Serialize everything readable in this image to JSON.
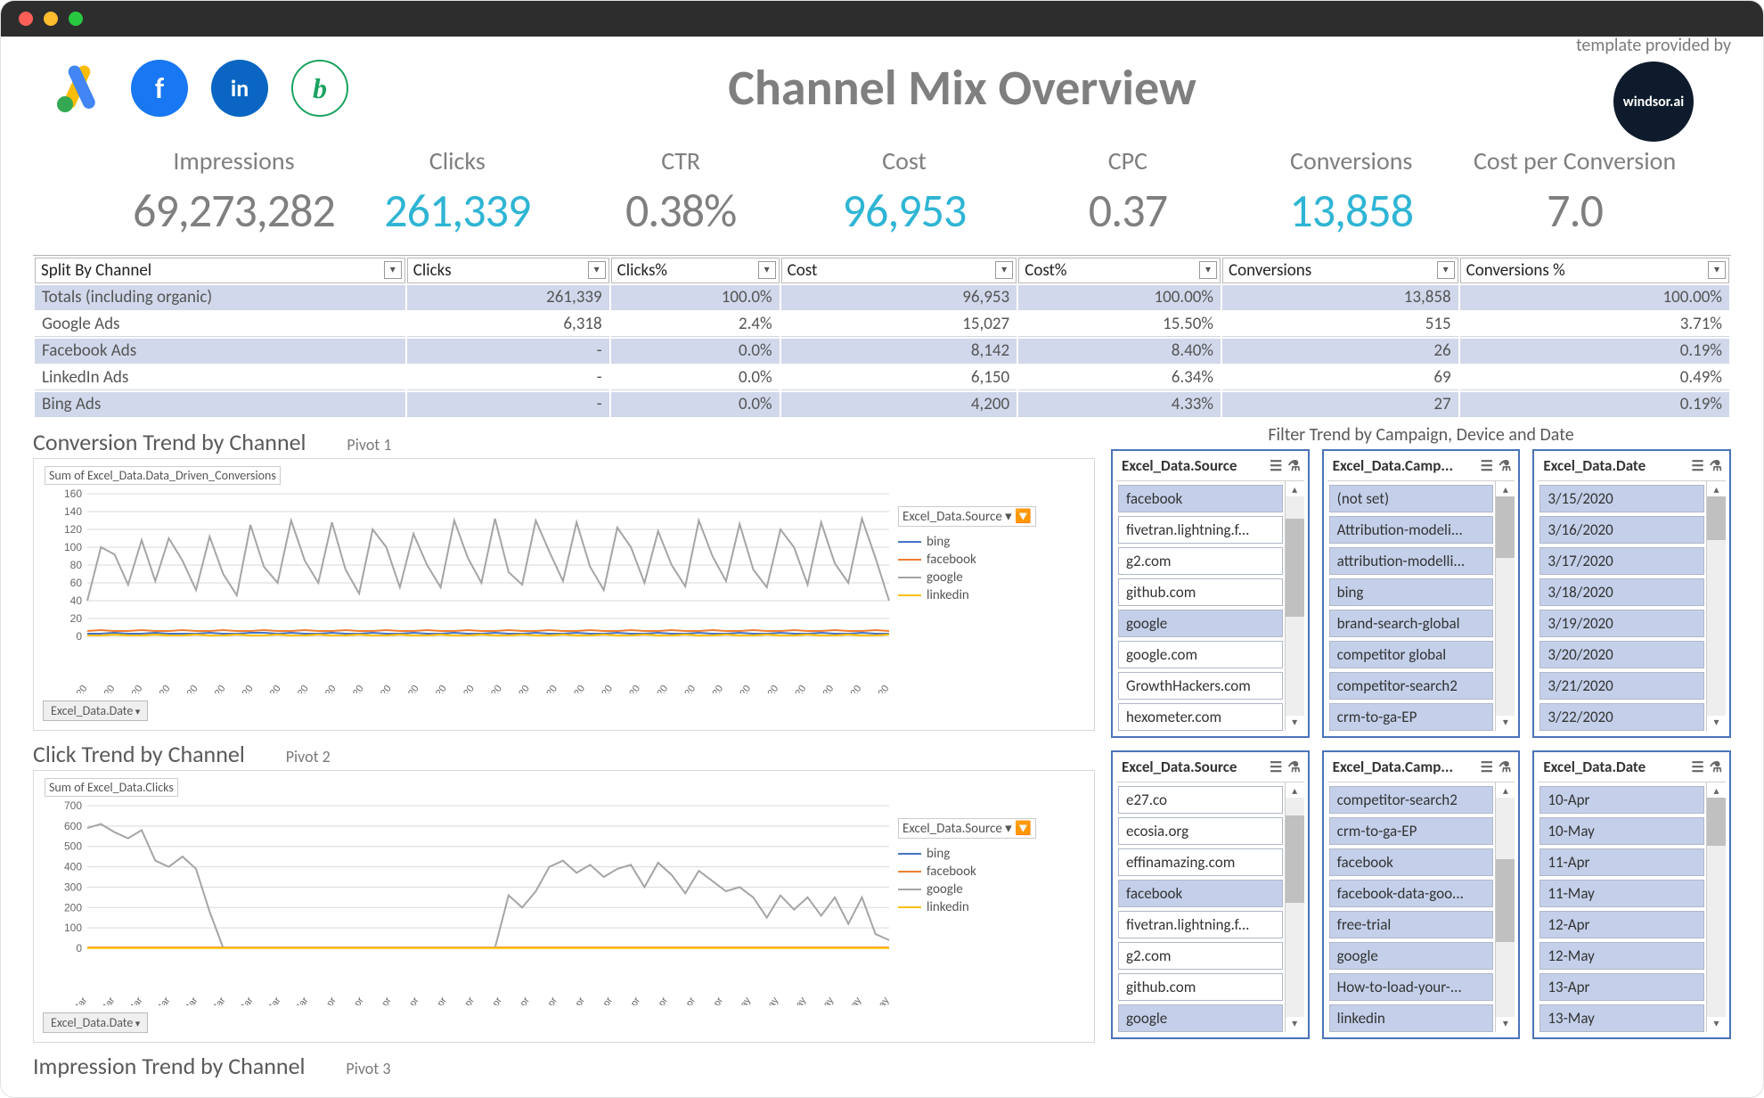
{
  "header": {
    "title": "Channel Mix Overview",
    "provider_label": "template provided by",
    "windsor_label": "windsor.ai",
    "icons": [
      {
        "name": "google-ads-icon"
      },
      {
        "name": "facebook-icon",
        "bg": "#1877f2",
        "glyph": "f"
      },
      {
        "name": "linkedin-icon",
        "bg": "#0a66c2",
        "glyph": "in"
      },
      {
        "name": "bing-icon",
        "bg": "#ffffff",
        "glyph": "b"
      }
    ]
  },
  "kpis": [
    {
      "label": "Impressions",
      "value": "69,273,282",
      "blue": false
    },
    {
      "label": "Clicks",
      "value": "261,339",
      "blue": true
    },
    {
      "label": "CTR",
      "value": "0.38%",
      "blue": false
    },
    {
      "label": "Cost",
      "value": "96,953",
      "blue": true
    },
    {
      "label": "CPC",
      "value": "0.37",
      "blue": false
    },
    {
      "label": "Conversions",
      "value": "13,858",
      "blue": true
    },
    {
      "label": "Cost per Conversion",
      "value": "7.0",
      "blue": false
    }
  ],
  "split_table": {
    "columns": [
      "Split By Channel",
      "Clicks",
      "Clicks%",
      "Cost",
      "Cost%",
      "Conversions",
      "Conversions %"
    ],
    "col_widths": [
      "22%",
      "12%",
      "10%",
      "14%",
      "12%",
      "14%",
      "16%"
    ],
    "rows": [
      {
        "hi": true,
        "cells": [
          "Totals (including organic)",
          "261,339",
          "100.0%",
          "96,953",
          "100.00%",
          "13,858",
          "100.00%"
        ]
      },
      {
        "hi": false,
        "cells": [
          "Google Ads",
          "6,318",
          "2.4%",
          "15,027",
          "15.50%",
          "515",
          "3.71%"
        ]
      },
      {
        "hi": true,
        "cells": [
          "Facebook Ads",
          "-",
          "0.0%",
          "8,142",
          "8.40%",
          "26",
          "0.19%"
        ]
      },
      {
        "hi": false,
        "cells": [
          "LinkedIn Ads",
          "-",
          "0.0%",
          "6,150",
          "6.34%",
          "69",
          "0.49%"
        ]
      },
      {
        "hi": true,
        "cells": [
          "Bing Ads",
          "-",
          "0.0%",
          "4,200",
          "4.33%",
          "27",
          "0.19%"
        ]
      }
    ]
  },
  "charts": {
    "legend_header": "Excel_Data.Source",
    "filter_pill": "Excel_Data.Date",
    "series_colors": {
      "bing": "#4472c4",
      "facebook": "#ed7d31",
      "google": "#a5a5a5",
      "linkedin": "#ffc000"
    },
    "series_order": [
      "bing",
      "facebook",
      "google",
      "linkedin"
    ],
    "conversion": {
      "title": "Conversion Trend by Channel",
      "pivot": "Pivot 1",
      "subtitle": "Sum of Excel_Data.Data_Driven_Conversions",
      "y_ticks": [
        0,
        20,
        40,
        60,
        80,
        100,
        120,
        140,
        160
      ],
      "y_max": 160,
      "x_labels": [
        "3/15/2020",
        "3/17/2020",
        "3/19/2020",
        "3/21/2020",
        "3/23/2020",
        "3/25/2020",
        "3/27/2020",
        "3/29/2020",
        "3/31/2020",
        "4/2/2020",
        "4/4/2020",
        "4/6/2020",
        "4/8/2020",
        "4/10/2020",
        "4/12/2020",
        "4/14/2020",
        "4/16/2020",
        "4/18/2020",
        "4/20/2020",
        "4/22/2020",
        "4/24/2020",
        "4/26/2020",
        "4/28/2020",
        "4/30/2020",
        "5/2/2020",
        "5/4/2020",
        "5/6/2020",
        "5/8/2020",
        "5/10/2020",
        "5/12/2020"
      ],
      "google": [
        40,
        100,
        92,
        58,
        108,
        62,
        110,
        85,
        52,
        112,
        70,
        46,
        125,
        78,
        60,
        130,
        85,
        60,
        128,
        75,
        48,
        120,
        100,
        55,
        115,
        80,
        55,
        130,
        88,
        60,
        132,
        72,
        58,
        130,
        95,
        62,
        128,
        78,
        52,
        122,
        100,
        60,
        118,
        80,
        56,
        130,
        90,
        62,
        126,
        75,
        55,
        120,
        100,
        58,
        128,
        82,
        60,
        132,
        88,
        40
      ],
      "bing": [
        3,
        3,
        4,
        3,
        3,
        4,
        3,
        3,
        3,
        4,
        3,
        3,
        4,
        4,
        3,
        4,
        3,
        3,
        4,
        3,
        3,
        4,
        3,
        3,
        4,
        3,
        3,
        4,
        3,
        3,
        4,
        3,
        3,
        4,
        3,
        3,
        4,
        3,
        3,
        4,
        3,
        3,
        4,
        3,
        3,
        4,
        3,
        3,
        4,
        3,
        3,
        4,
        3,
        3,
        4,
        3,
        3,
        4,
        3,
        3
      ],
      "facebook": [
        6,
        7,
        6,
        6,
        7,
        6,
        6,
        7,
        6,
        6,
        7,
        6,
        6,
        7,
        6,
        6,
        7,
        6,
        6,
        7,
        6,
        6,
        7,
        6,
        6,
        7,
        6,
        6,
        7,
        6,
        6,
        7,
        6,
        6,
        7,
        6,
        6,
        7,
        6,
        6,
        7,
        6,
        6,
        7,
        6,
        6,
        7,
        6,
        6,
        7,
        6,
        6,
        7,
        6,
        6,
        7,
        6,
        6,
        7,
        6
      ],
      "linkedin": [
        1,
        1,
        2,
        1,
        1,
        2,
        1,
        1,
        2,
        1,
        1,
        2,
        1,
        1,
        2,
        1,
        1,
        2,
        1,
        1,
        2,
        1,
        1,
        2,
        1,
        1,
        2,
        1,
        1,
        2,
        1,
        1,
        2,
        1,
        1,
        2,
        1,
        1,
        2,
        1,
        1,
        2,
        1,
        1,
        2,
        1,
        1,
        2,
        1,
        1,
        2,
        1,
        1,
        2,
        1,
        1,
        2,
        1,
        1,
        2
      ]
    },
    "clicks": {
      "title": "Click Trend by Channel",
      "pivot": "Pivot 2",
      "subtitle": "Sum of Excel_Data.Clicks",
      "y_ticks": [
        0,
        100,
        200,
        300,
        400,
        500,
        600,
        700
      ],
      "y_max": 700,
      "x_labels": [
        "15-Mar",
        "17-Mar",
        "19-Mar",
        "21-Mar",
        "23-Mar",
        "25-Mar",
        "27-Mar",
        "29-Mar",
        "31-Mar",
        "2-Apr",
        "4-Apr",
        "6-Apr",
        "8-Apr",
        "10-Apr",
        "12-Apr",
        "14-Apr",
        "16-Apr",
        "18-Apr",
        "20-Apr",
        "22-Apr",
        "24-Apr",
        "26-Apr",
        "28-Apr",
        "30-Apr",
        "2-May",
        "4-May",
        "6-May",
        "8-May",
        "10-May",
        "12-May"
      ],
      "google": [
        590,
        610,
        570,
        540,
        580,
        430,
        400,
        450,
        390,
        180,
        2,
        2,
        2,
        2,
        2,
        2,
        2,
        2,
        2,
        2,
        2,
        2,
        2,
        2,
        2,
        2,
        2,
        2,
        2,
        2,
        2,
        260,
        200,
        280,
        400,
        430,
        370,
        410,
        350,
        390,
        410,
        300,
        420,
        360,
        270,
        380,
        330,
        280,
        300,
        250,
        150,
        260,
        190,
        250,
        160,
        250,
        120,
        250,
        70,
        40
      ],
      "bing": [
        2,
        2,
        2,
        2,
        2,
        2,
        2,
        2,
        2,
        2,
        2,
        2,
        2,
        2,
        2,
        2,
        2,
        2,
        2,
        2,
        2,
        2,
        2,
        2,
        2,
        2,
        2,
        2,
        2,
        2,
        2,
        2,
        2,
        2,
        2,
        2,
        2,
        2,
        2,
        2,
        2,
        2,
        2,
        2,
        2,
        2,
        2,
        2,
        2,
        2,
        2,
        2,
        2,
        2,
        2,
        2,
        2,
        2,
        2,
        2
      ],
      "facebook": [
        4,
        4,
        4,
        4,
        4,
        4,
        4,
        4,
        4,
        4,
        4,
        4,
        4,
        4,
        4,
        4,
        4,
        4,
        4,
        4,
        4,
        4,
        4,
        4,
        4,
        4,
        4,
        4,
        4,
        4,
        4,
        4,
        4,
        4,
        4,
        4,
        4,
        4,
        4,
        4,
        4,
        4,
        4,
        4,
        4,
        4,
        4,
        4,
        4,
        4,
        4,
        4,
        4,
        4,
        4,
        4,
        4,
        4,
        4,
        4
      ],
      "linkedin": [
        1,
        1,
        1,
        1,
        1,
        1,
        1,
        1,
        1,
        1,
        1,
        1,
        1,
        1,
        1,
        1,
        1,
        1,
        1,
        1,
        1,
        1,
        1,
        1,
        1,
        1,
        1,
        1,
        1,
        1,
        1,
        1,
        1,
        1,
        1,
        1,
        1,
        1,
        1,
        1,
        1,
        1,
        1,
        1,
        1,
        1,
        1,
        1,
        1,
        1,
        1,
        1,
        1,
        1,
        1,
        1,
        1,
        1,
        1,
        1
      ]
    },
    "impression": {
      "title": "Impression Trend by Channel",
      "pivot": "Pivot 3"
    }
  },
  "slicers_header": "Filter Trend by Campaign, Device and Date",
  "slicer_rows": [
    [
      {
        "title": "Excel_Data.Source",
        "items": [
          {
            "t": "facebook",
            "sel": true
          },
          {
            "t": "fivetran.lightning.f...",
            "sel": false
          },
          {
            "t": "g2.com",
            "sel": false
          },
          {
            "t": "github.com",
            "sel": false
          },
          {
            "t": "google",
            "sel": true
          },
          {
            "t": "google.com",
            "sel": false
          },
          {
            "t": "GrowthHackers.com",
            "sel": false
          },
          {
            "t": "hexometer.com",
            "sel": false
          }
        ],
        "thumb": [
          10,
          45
        ]
      },
      {
        "title": "Excel_Data.Camp...",
        "items": [
          {
            "t": "(not set)",
            "sel": true
          },
          {
            "t": "Attribution-modeli...",
            "sel": true
          },
          {
            "t": "attribution-modelli...",
            "sel": true
          },
          {
            "t": "bing",
            "sel": true
          },
          {
            "t": "brand-search-global",
            "sel": true
          },
          {
            "t": "competitor global",
            "sel": true
          },
          {
            "t": "competitor-search2",
            "sel": true
          },
          {
            "t": "crm-to-ga-EP",
            "sel": true
          }
        ],
        "thumb": [
          0,
          28
        ]
      },
      {
        "title": "Excel_Data.Date",
        "items": [
          {
            "t": "3/15/2020",
            "sel": true
          },
          {
            "t": "3/16/2020",
            "sel": true
          },
          {
            "t": "3/17/2020",
            "sel": true
          },
          {
            "t": "3/18/2020",
            "sel": true
          },
          {
            "t": "3/19/2020",
            "sel": true
          },
          {
            "t": "3/20/2020",
            "sel": true
          },
          {
            "t": "3/21/2020",
            "sel": true
          },
          {
            "t": "3/22/2020",
            "sel": true
          }
        ],
        "thumb": [
          0,
          20
        ]
      }
    ],
    [
      {
        "title": "Excel_Data.Source",
        "items": [
          {
            "t": "e27.co",
            "sel": false
          },
          {
            "t": "ecosia.org",
            "sel": false
          },
          {
            "t": "effinamazing.com",
            "sel": false
          },
          {
            "t": "facebook",
            "sel": true
          },
          {
            "t": "fivetran.lightning.f...",
            "sel": false
          },
          {
            "t": "g2.com",
            "sel": false
          },
          {
            "t": "github.com",
            "sel": false
          },
          {
            "t": "google",
            "sel": true
          }
        ],
        "thumb": [
          8,
          40
        ]
      },
      {
        "title": "Excel_Data.Camp...",
        "items": [
          {
            "t": "competitor-search2",
            "sel": true
          },
          {
            "t": "crm-to-ga-EP",
            "sel": true
          },
          {
            "t": "facebook",
            "sel": true
          },
          {
            "t": "facebook-data-goo...",
            "sel": true
          },
          {
            "t": "free-trial",
            "sel": true
          },
          {
            "t": "google",
            "sel": true
          },
          {
            "t": "How-to-load-your-...",
            "sel": true
          },
          {
            "t": "linkedin",
            "sel": true
          }
        ],
        "thumb": [
          28,
          38
        ]
      },
      {
        "title": "Excel_Data.Date",
        "items": [
          {
            "t": "10-Apr",
            "sel": true
          },
          {
            "t": "10-May",
            "sel": true
          },
          {
            "t": "11-Apr",
            "sel": true
          },
          {
            "t": "11-May",
            "sel": true
          },
          {
            "t": "12-Apr",
            "sel": true
          },
          {
            "t": "12-May",
            "sel": true
          },
          {
            "t": "13-Apr",
            "sel": true
          },
          {
            "t": "13-May",
            "sel": true
          }
        ],
        "thumb": [
          0,
          22
        ]
      }
    ]
  ]
}
